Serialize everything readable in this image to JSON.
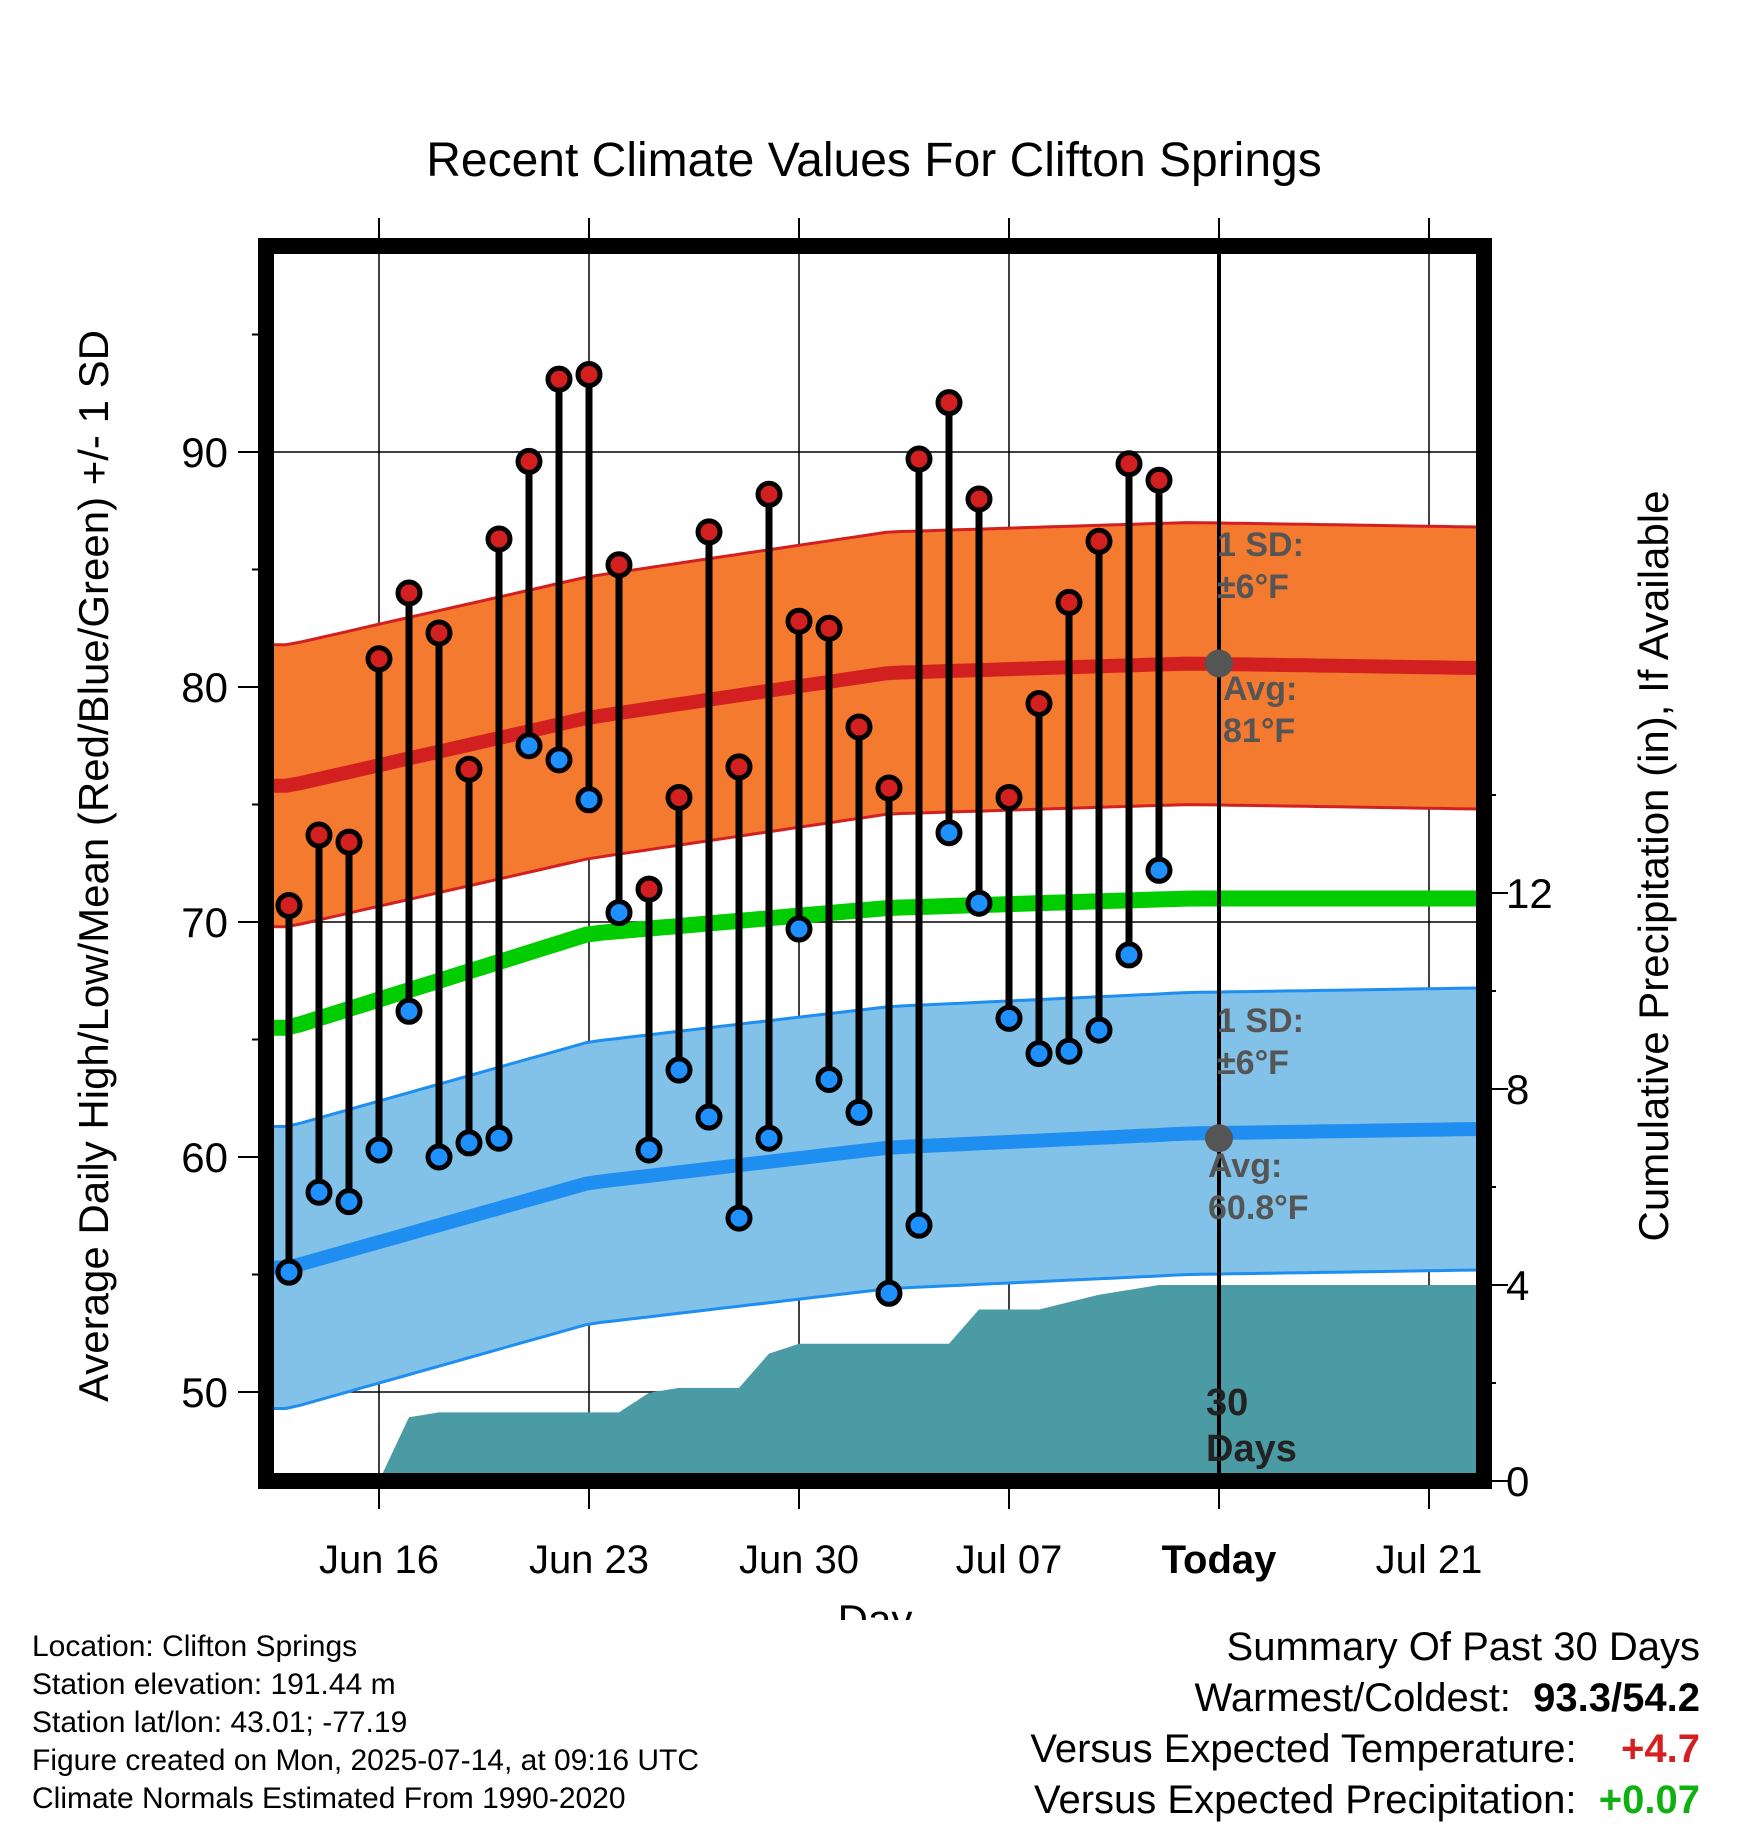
{
  "title": "Recent Climate Values For Clifton Springs",
  "chart_data": {
    "type": "line",
    "title": "Recent Climate Values For Clifton Springs",
    "xlabel": "Day",
    "ylabel": "Average Daily High/Low/Mean (Red/Blue/Green) +/- 1 SD",
    "y2label": "Cumulative Precipitation (in), If Available",
    "x_ticks": [
      "Jun 16",
      "Jun 23",
      "Jun 30",
      "Jul 07",
      "Today",
      "Jul 21"
    ],
    "ylim": [
      46,
      99
    ],
    "y_ticks": [
      50,
      60,
      70,
      80,
      90
    ],
    "y2lim": [
      0,
      24
    ],
    "y2_ticks": [
      0,
      4,
      8,
      12
    ],
    "grid": true,
    "today_label": "Today",
    "days_label": [
      "30",
      "Days"
    ],
    "daily": {
      "high": [
        70.7,
        73.7,
        73.4,
        81.2,
        84.0,
        82.3,
        76.5,
        86.3,
        89.6,
        93.1,
        93.3,
        85.2,
        71.4,
        75.3,
        86.6,
        76.6,
        88.2,
        82.8,
        82.5,
        78.3,
        75.7,
        89.7,
        92.1,
        88.0,
        75.3,
        79.3,
        83.6,
        86.2,
        89.5,
        88.8
      ],
      "low": [
        55.1,
        58.5,
        58.1,
        60.3,
        66.2,
        60.0,
        60.6,
        60.8,
        77.5,
        76.9,
        75.2,
        70.4,
        60.3,
        63.7,
        61.7,
        57.4,
        60.8,
        69.7,
        63.3,
        61.9,
        54.2,
        57.1,
        73.8,
        70.8,
        65.9,
        64.4,
        64.5,
        65.4,
        68.6,
        72.2
      ]
    },
    "normals": {
      "high_mean": [
        75.8,
        78.7,
        80.6,
        81.0,
        80.8
      ],
      "high_sd": 6,
      "low_mean": [
        55.3,
        58.9,
        60.4,
        61.0,
        61.2
      ],
      "low_sd": 6,
      "mean": [
        65.5,
        69.5,
        70.6,
        71.0,
        71.0
      ],
      "sample_days": [
        0,
        10,
        20,
        30,
        40
      ],
      "label_high_sd": [
        "1 SD:",
        "±6°F"
      ],
      "label_high_avg": [
        "Avg:",
        "81°F"
      ],
      "label_low_sd": [
        "1 SD:",
        "±6°F"
      ],
      "label_low_avg": [
        "Avg:",
        "60.8°F"
      ]
    },
    "precip_cumulative": {
      "days": [
        0,
        3,
        4,
        5,
        7,
        11,
        12,
        13,
        15,
        16,
        17,
        20,
        21,
        22,
        23,
        24,
        25,
        27,
        29,
        31,
        40
      ],
      "values": [
        0.0,
        0.0,
        1.3,
        1.4,
        1.4,
        1.4,
        1.8,
        1.9,
        1.9,
        2.6,
        2.8,
        2.8,
        2.8,
        2.8,
        3.5,
        3.5,
        3.5,
        3.8,
        4.0,
        4.0,
        4.0
      ]
    }
  },
  "info": {
    "location": "Location: Clifton Springs",
    "elevation": "Station elevation: 191.44 m",
    "latlon": "Station lat/lon: 43.01; -77.19",
    "created": "Figure created on Mon, 2025-07-14, at 09:16 UTC",
    "normals": "Climate Normals Estimated From 1990-2020"
  },
  "summary": {
    "heading": "Summary Of Past 30 Days",
    "warmest_label": "Warmest/Coldest:",
    "warmest_value": "93.3",
    "sep": "/",
    "coldest_value": "54.2",
    "temp_label": "Versus Expected Temperature:",
    "temp_value": "+4.7",
    "temp_color": "#d42020",
    "precip_label": "Versus Expected Precipitation:",
    "precip_value": "+0.07",
    "precip_color": "#10b010"
  },
  "colors": {
    "high_band": "#f47a30",
    "high_line": "#d22020",
    "low_band": "#82c1e8",
    "low_line": "#1e8ef0",
    "mean_line": "#00cc00",
    "precip": "#4a9ba4",
    "normal_label": "#555555"
  }
}
